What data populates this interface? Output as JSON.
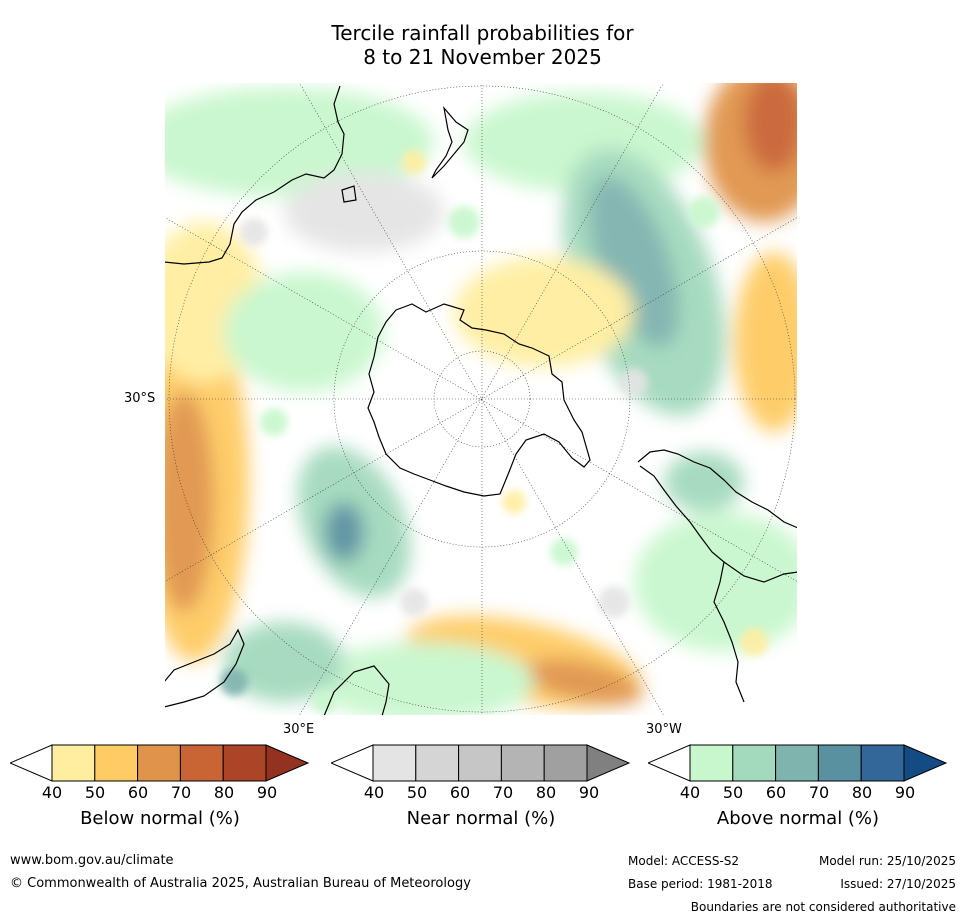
{
  "title": {
    "line1": "Tercile rainfall probabilities for",
    "line2": "8 to 21 November 2025"
  },
  "map": {
    "projection": "south-polar-stereographic",
    "labels": {
      "lat_30s": "30°S",
      "lon_30e": "30°E",
      "lon_30w": "30°W"
    },
    "regions": {
      "antarctica": "Antarctica",
      "australia": "Australia",
      "new_zealand": "New Zealand",
      "south_america": "South America",
      "africa": "Africa"
    }
  },
  "legend": [
    {
      "title": "Below normal (%)",
      "ticks": [
        "40",
        "50",
        "60",
        "70",
        "80",
        "90"
      ],
      "colors": [
        "#ffffff",
        "#ffeea0",
        "#fecb64",
        "#e0944b",
        "#c96434",
        "#ac4528",
        "#933220"
      ]
    },
    {
      "title": "Near normal (%)",
      "ticks": [
        "40",
        "50",
        "60",
        "70",
        "80",
        "90"
      ],
      "colors": [
        "#ffffff",
        "#e4e4e4",
        "#d5d5d5",
        "#c6c6c6",
        "#b4b4b4",
        "#a0a0a0",
        "#808080"
      ]
    },
    {
      "title": "Above normal (%)",
      "ticks": [
        "40",
        "50",
        "60",
        "70",
        "80",
        "90"
      ],
      "colors": [
        "#ffffff",
        "#c8f7cd",
        "#a3d9bd",
        "#7fb3ae",
        "#5a91a0",
        "#33679a",
        "#154b84"
      ]
    }
  ],
  "footer": {
    "website": "www.bom.gov.au/climate",
    "copyright": "© Commonwealth of Australia 2025, Australian Bureau of Meteorology",
    "model": "Model: ACCESS-S2",
    "base_period": "Base period: 1981-2018",
    "model_run": "Model run: 25/10/2025",
    "issued": "Issued: 27/10/2025",
    "disclaimer": "Boundaries are not considered authoritative"
  }
}
